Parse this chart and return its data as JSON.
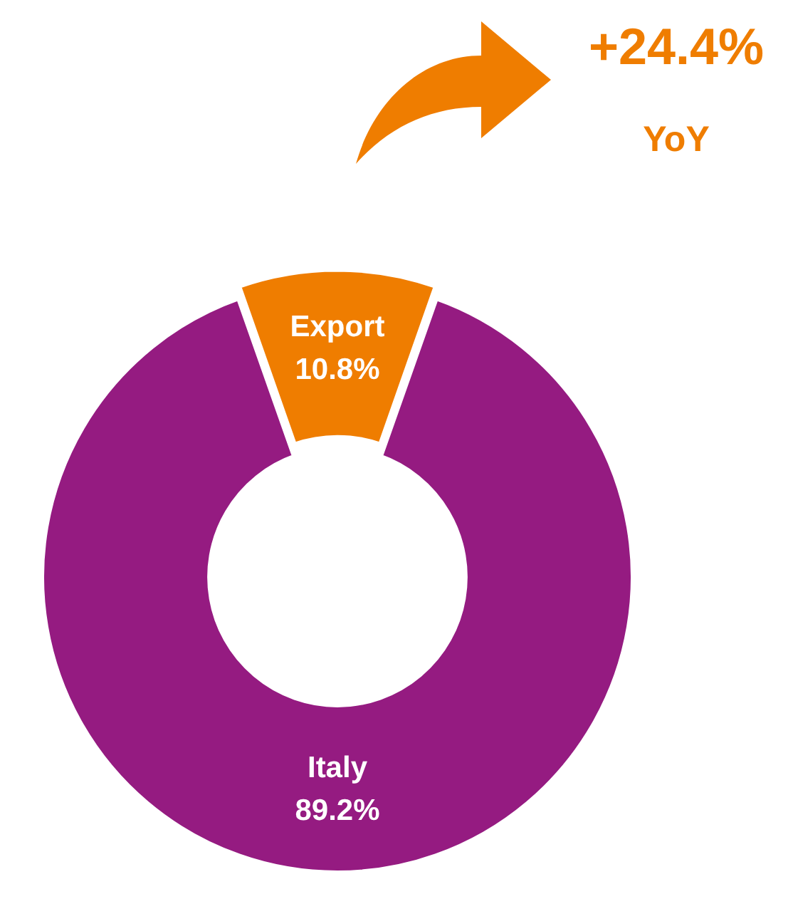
{
  "chart_data": {
    "type": "donut",
    "categories": [
      "Export",
      "Italy"
    ],
    "values": [
      10.8,
      89.2
    ],
    "colors": [
      "#ef7d00",
      "#951b81"
    ],
    "value_labels": [
      "10.8%",
      "89.2%"
    ],
    "annotations": [
      "+24.4%",
      "YoY"
    ]
  }
}
